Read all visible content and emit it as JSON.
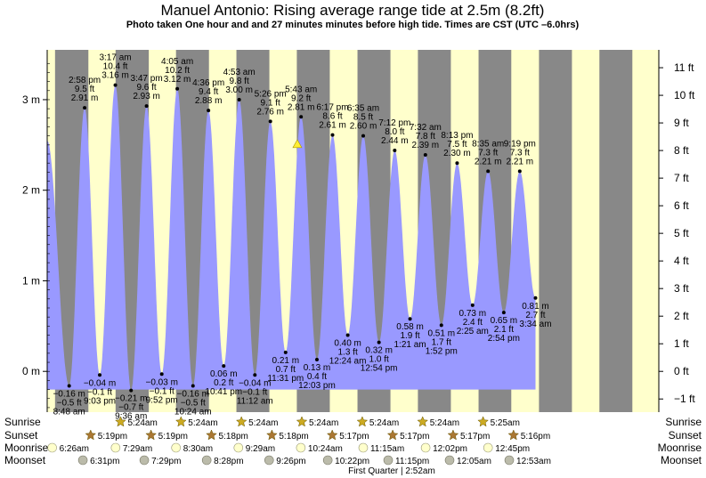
{
  "title": "Manuel Antonio: Rising average range tide at 2.5m (8.2ft)",
  "subtitle": "Photo taken One hour and and 27 minutes minutes before high tide. Times are CST (UTC –6.0hrs)",
  "colors": {
    "day": "#ffffcc",
    "night": "#888888",
    "tide": "#9999ff",
    "marker": "#ffee33",
    "sun": "#ccaa22",
    "sunset": "#aa7733",
    "moonrise": "#ffffcc",
    "moonset": "#bbbbaa"
  },
  "chart_data": {
    "type": "area",
    "title": "Manuel Antonio: Rising average range tide at 2.5m (8.2ft)",
    "xlabel": "",
    "ylabel": "",
    "y_left": {
      "ticks": [
        "0 m",
        "1 m",
        "2 m",
        "3 m"
      ],
      "values": [
        0,
        1,
        2,
        3
      ]
    },
    "y_right": {
      "ticks": [
        "−1 ft",
        "0 ft",
        "1 ft",
        "2 ft",
        "3 ft",
        "4 ft",
        "5 ft",
        "6 ft",
        "7 ft",
        "8 ft",
        "9 ft",
        "10 ft",
        "11 ft"
      ],
      "values": [
        -1,
        0,
        1,
        2,
        3,
        4,
        5,
        6,
        7,
        8,
        9,
        10,
        11
      ]
    },
    "ylim": [
      -0.45,
      3.55
    ],
    "x_hours_range": [
      0,
      245
    ],
    "night_bands": [
      [
        3.15,
        16.5
      ],
      [
        27.4,
        40.7
      ],
      [
        51.6,
        64.8
      ],
      [
        75.8,
        89.0
      ],
      [
        100.0,
        113.2
      ],
      [
        124.3,
        137.5
      ],
      [
        148.5,
        161.7
      ],
      [
        172.8,
        185.9
      ],
      [
        197.0,
        210.2
      ],
      [
        221.2,
        234.4
      ]
    ],
    "tides": [
      {
        "h": 8.8,
        "height": -0.16,
        "type": "low",
        "label_lines": [
          "−0.16 m",
          "−0.5 ft",
          "8:48 am"
        ]
      },
      {
        "h": 15.0,
        "height": 2.91,
        "type": "high",
        "label_lines": [
          "2:58 pm",
          "9.5 ft",
          "2.91 m"
        ]
      },
      {
        "h": 21.05,
        "height": -0.04,
        "type": "low",
        "label_lines": [
          "−0.04 m",
          "−0.1 ft",
          "9:03 pm"
        ]
      },
      {
        "h": 27.3,
        "height": 3.16,
        "type": "high",
        "label_lines": [
          "3:17 am",
          "10.4 ft",
          "3.16 m"
        ]
      },
      {
        "h": 33.6,
        "height": -0.21,
        "type": "low",
        "label_lines": [
          "−0.21 m",
          "−0.7 ft",
          "9:36 am"
        ]
      },
      {
        "h": 39.8,
        "height": 2.93,
        "type": "high",
        "label_lines": [
          "3:47 pm",
          "9.6 ft",
          "2.93 m"
        ]
      },
      {
        "h": 45.9,
        "height": -0.03,
        "type": "low",
        "label_lines": [
          "−0.03 m",
          "−0.1 ft",
          "9:52 pm"
        ]
      },
      {
        "h": 52.1,
        "height": 3.12,
        "type": "high",
        "label_lines": [
          "4:05 am",
          "10.2 ft",
          "3.12 m"
        ]
      },
      {
        "h": 58.4,
        "height": -0.16,
        "type": "low",
        "label_lines": [
          "−0.16 m",
          "−0.5 ft",
          "10:24 am"
        ]
      },
      {
        "h": 64.6,
        "height": 2.88,
        "type": "high",
        "label_lines": [
          "4:36 pm",
          "9.4 ft",
          "2.88 m"
        ]
      },
      {
        "h": 70.7,
        "height": 0.06,
        "type": "low",
        "label_lines": [
          "0.06 m",
          "0.2 ft",
          "10:41 pm"
        ]
      },
      {
        "h": 76.9,
        "height": 3.0,
        "type": "high",
        "label_lines": [
          "4:53 am",
          "9.8 ft",
          "3.00 m"
        ]
      },
      {
        "h": 83.2,
        "height": -0.04,
        "type": "low",
        "label_lines": [
          "−0.04 m",
          "−0.1 ft",
          "11:12 am"
        ]
      },
      {
        "h": 89.4,
        "height": 2.76,
        "type": "high",
        "label_lines": [
          "5:26 pm",
          "9.1 ft",
          "2.76 m"
        ]
      },
      {
        "h": 95.5,
        "height": 0.21,
        "type": "low",
        "label_lines": [
          "0.21 m",
          "0.7 ft",
          "11:31 pm"
        ]
      },
      {
        "h": 101.7,
        "height": 2.81,
        "type": "high",
        "label_lines": [
          "5:43 am",
          "9.2 ft",
          "2.81 m"
        ]
      },
      {
        "h": 108.05,
        "height": 0.13,
        "type": "low",
        "label_lines": [
          "0.13 m",
          "0.4 ft",
          "12:03 pm"
        ]
      },
      {
        "h": 114.3,
        "height": 2.61,
        "type": "high",
        "label_lines": [
          "6:17 pm",
          "8.6 ft",
          "2.61 m"
        ]
      },
      {
        "h": 120.4,
        "height": 0.4,
        "type": "low",
        "label_lines": [
          "0.40 m",
          "1.3 ft",
          "12:24 am"
        ]
      },
      {
        "h": 126.6,
        "height": 2.6,
        "type": "high",
        "label_lines": [
          "6:35 am",
          "8.5 ft",
          "2.60 m"
        ]
      },
      {
        "h": 132.9,
        "height": 0.32,
        "type": "low",
        "label_lines": [
          "0.32 m",
          "1.0 ft",
          "12:54 pm"
        ]
      },
      {
        "h": 139.2,
        "height": 2.44,
        "type": "high",
        "label_lines": [
          "7:12 pm",
          "8.0 ft",
          "2.44 m"
        ]
      },
      {
        "h": 145.35,
        "height": 0.58,
        "type": "low",
        "label_lines": [
          "0.58 m",
          "1.9 ft",
          "1:21 am"
        ]
      },
      {
        "h": 151.5,
        "height": 2.39,
        "type": "high",
        "label_lines": [
          "7:32 am",
          "7.8 ft",
          "2.39 m"
        ]
      },
      {
        "h": 157.9,
        "height": 0.51,
        "type": "low",
        "label_lines": [
          "0.51 m",
          "1.7 ft",
          "1:52 pm"
        ]
      },
      {
        "h": 164.2,
        "height": 2.3,
        "type": "high",
        "label_lines": [
          "8:13 pm",
          "7.5 ft",
          "2.30 m"
        ]
      },
      {
        "h": 170.4,
        "height": 0.73,
        "type": "low",
        "label_lines": [
          "0.73 m",
          "2.4 ft",
          "2:25 am"
        ]
      },
      {
        "h": 176.6,
        "height": 2.21,
        "type": "high",
        "label_lines": [
          "8:35 am",
          "7.3 ft",
          "2.21 m"
        ]
      },
      {
        "h": 182.9,
        "height": 0.65,
        "type": "low",
        "label_lines": [
          "0.65 m",
          "2.1 ft",
          "2:54 pm"
        ]
      },
      {
        "h": 189.3,
        "height": 2.21,
        "type": "high",
        "label_lines": [
          "9:19 pm",
          "7.3 ft",
          "2.21 m"
        ]
      },
      {
        "h": 195.6,
        "height": 0.81,
        "type": "low",
        "label_lines": [
          "0.81 m",
          "2.7 ft",
          "3:34 am"
        ]
      }
    ],
    "curve_start": {
      "h": 0.0,
      "height": 2.55
    },
    "curve_end_h": 195.6,
    "photo_marker": {
      "h": 100.2,
      "height": 2.5
    },
    "rows": {
      "labels": [
        "Sunrise",
        "Sunset",
        "Moonrise",
        "Moonset"
      ],
      "sunrise": [
        {
          "h": 29.4,
          "t": "5:24am"
        },
        {
          "h": 53.6,
          "t": "5:24am"
        },
        {
          "h": 77.8,
          "t": "5:24am"
        },
        {
          "h": 102.0,
          "t": "5:24am"
        },
        {
          "h": 126.2,
          "t": "5:24am"
        },
        {
          "h": 150.4,
          "t": "5:24am"
        },
        {
          "h": 174.6,
          "t": "5:25am"
        }
      ],
      "sunset": [
        {
          "h": 17.4,
          "t": "5:19pm"
        },
        {
          "h": 41.6,
          "t": "5:19pm"
        },
        {
          "h": 65.8,
          "t": "5:18pm"
        },
        {
          "h": 90.0,
          "t": "5:18pm"
        },
        {
          "h": 114.2,
          "t": "5:17pm"
        },
        {
          "h": 138.4,
          "t": "5:17pm"
        },
        {
          "h": 162.6,
          "t": "5:17pm"
        },
        {
          "h": 186.8,
          "t": "5:16pm"
        }
      ],
      "moonrise": [
        {
          "h": 2.0,
          "t": "6:26am"
        },
        {
          "h": 27.4,
          "t": "7:29am"
        },
        {
          "h": 51.6,
          "t": "8:30am"
        },
        {
          "h": 76.6,
          "t": "9:29am"
        },
        {
          "h": 101.6,
          "t": "10:24am"
        },
        {
          "h": 126.6,
          "t": "11:15am"
        },
        {
          "h": 151.6,
          "t": "12:02pm"
        },
        {
          "h": 176.6,
          "t": "12:45pm"
        }
      ],
      "moonset": [
        {
          "h": 14.3,
          "t": "6:31pm"
        },
        {
          "h": 38.9,
          "t": "7:29pm"
        },
        {
          "h": 63.9,
          "t": "8:28pm"
        },
        {
          "h": 88.9,
          "t": "9:26pm"
        },
        {
          "h": 112.4,
          "t": "10:22pm"
        },
        {
          "h": 136.6,
          "t": "11:15pm"
        },
        {
          "h": 161.2,
          "t": "12:05am"
        },
        {
          "h": 185.1,
          "t": "12:53am"
        }
      ]
    },
    "moon_phase": {
      "h": 138.0,
      "label": "First Quarter | 2:52am"
    }
  }
}
